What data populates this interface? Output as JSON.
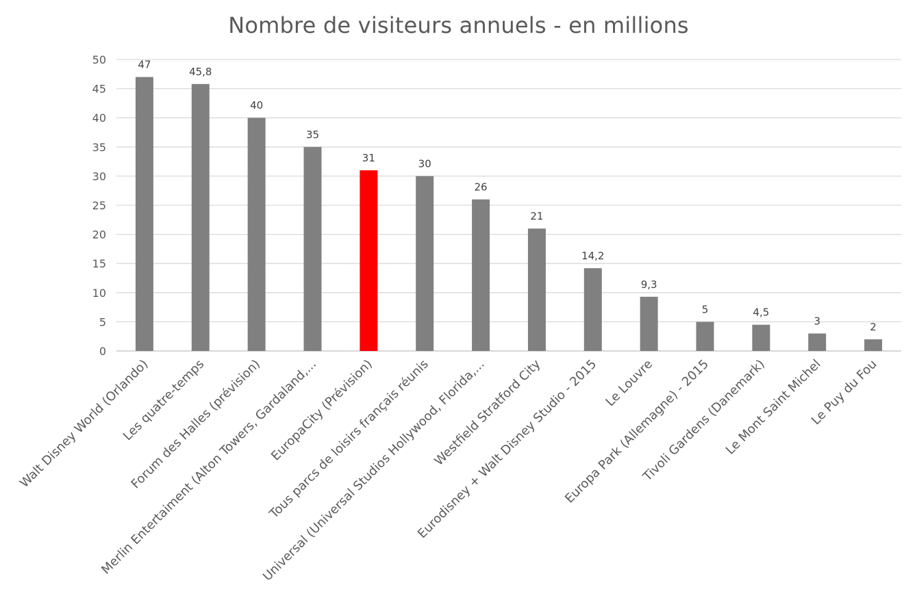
{
  "chart_data": {
    "type": "bar",
    "title": "Nombre de visiteurs annuels - en millions",
    "xlabel": "",
    "ylabel": "",
    "ylim": [
      0,
      50
    ],
    "yticks": [
      "0",
      "5",
      "10",
      "15",
      "20",
      "25",
      "30",
      "35",
      "40",
      "45",
      "50"
    ],
    "grid": true,
    "legend": "none",
    "categories": [
      "Walt Disney World (Orlando)",
      "Les quatre-temps",
      "Forum des Halles (prévision)",
      "Merlin Entertaiment  (Alton Towers, Gardaland,...",
      "EuropaCity (Prévision)",
      "Tous parcs de loisirs français réunis",
      "Universal (Universal Studios Hollywood, Florida,...",
      "Westfield Stratford City",
      "Eurodisney + Walt Disney Studio - 2015",
      "Le Louvre",
      "Europa Park (Allemagne) - 2015",
      "Tivoli Gardens (Danemark)",
      "Le Mont Saint Michel",
      "Le Puy du Fou"
    ],
    "values": [
      47,
      45.8,
      40,
      35,
      31,
      30,
      26,
      21,
      14.2,
      9.3,
      5,
      4.5,
      3,
      2
    ],
    "data_labels": [
      "47",
      "45,8",
      "40",
      "35",
      "31",
      "30",
      "26",
      "21",
      "14,2",
      "9,3",
      "5",
      "4,5",
      "3",
      "2"
    ],
    "highlight_index": 4,
    "colors": {
      "bar": "#808080",
      "highlight": "#ff0000",
      "grid": "#d9d9d9",
      "axis": "#bfbfbf"
    }
  }
}
